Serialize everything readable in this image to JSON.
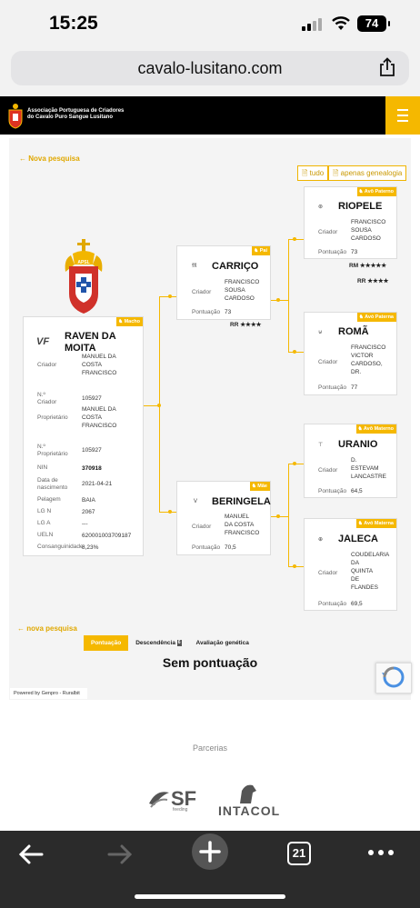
{
  "status_bar": {
    "time": "15:25",
    "battery": "74"
  },
  "browser": {
    "url": "cavalo-lusitano.com"
  },
  "site_header": {
    "org_line1": "Associação Portuguesa de Criadores",
    "org_line2": "do Cavalo Puro Sangue Lusitano"
  },
  "top_link": "← Nova pesquisa",
  "buttons": {
    "all": "tudo",
    "genealogy": "apenas genealogia"
  },
  "crest_text": "APSL",
  "horse": {
    "badge": "Macho",
    "mark": "VF",
    "name_line1": "RAVEN DA",
    "name_line2": "MOITA",
    "rows": [
      {
        "label": [
          "Criador"
        ],
        "value": [
          "MANUEL DA",
          "COSTA",
          "FRANCISCO"
        ]
      },
      {
        "label": [
          "N.º",
          "Criador"
        ],
        "value": [
          "105927"
        ]
      },
      {
        "label": [
          "Proprietário"
        ],
        "value": [
          "MANUEL DA",
          "COSTA",
          "FRANCISCO"
        ]
      },
      {
        "label": [
          "N.º",
          "Proprietário"
        ],
        "value": [
          "105927"
        ]
      },
      {
        "label": [
          "NIN"
        ],
        "value": [
          "370918"
        ]
      },
      {
        "label": [
          "Data de",
          "nascimento"
        ],
        "value": [
          "2021-04-21"
        ]
      },
      {
        "label": [
          "Pelagem"
        ],
        "value": [
          "BAIA"
        ]
      },
      {
        "label": [
          "LG N"
        ],
        "value": [
          "2067"
        ]
      },
      {
        "label": [
          "LG A"
        ],
        "value": [
          "---"
        ]
      },
      {
        "label": [
          "UELN"
        ],
        "value": [
          "620001003709187"
        ]
      },
      {
        "label": [
          "Consanguinidade"
        ],
        "value": [
          "8,23%"
        ]
      }
    ]
  },
  "father": {
    "badge": "Pai",
    "mark": "𝔐",
    "name": "CARRIÇO",
    "breeder_label": "Criador",
    "breeder": [
      "FRANCISCO",
      "SOUSA",
      "CARDOSO"
    ],
    "score_label": "Pontuação",
    "score": "73",
    "rating_code": "RR",
    "rating": "★★★★"
  },
  "mother": {
    "badge": "Mãe",
    "mark": "V",
    "name": "BERINGELA",
    "breeder_label": "Criador",
    "breeder": [
      "MANUEL",
      "DA COSTA",
      "FRANCISCO"
    ],
    "score_label": "Pontuação",
    "score": "70,5"
  },
  "grandparents": [
    {
      "badge": "Avô Paterno",
      "mark": "⊛",
      "name": "RIOPELE",
      "breeder_label": "Criador",
      "breeder": [
        "FRANCISCO",
        "SOUSA",
        "CARDOSO"
      ],
      "score_label": "Pontuação",
      "score": "73",
      "ratings": [
        {
          "code": "RM",
          "stars": "★★★★★"
        },
        {
          "code": "RR",
          "stars": "★★★★"
        }
      ]
    },
    {
      "badge": "Avó Paterna",
      "mark": "⊍",
      "name": "ROMÃ",
      "breeder_label": "Criador",
      "breeder": [
        "FRANCISCO",
        "VICTOR",
        "CARDOSO,",
        "DR."
      ],
      "score_label": "Pontuação",
      "score": "77"
    },
    {
      "badge": "Avô Materno",
      "mark": "⊤",
      "name": "URANIO",
      "breeder_label": "Criador",
      "breeder": [
        "D.",
        "ESTEVAM",
        "LANCASTRE"
      ],
      "score_label": "Pontuação",
      "score": "64,5"
    },
    {
      "badge": "Avó Materna",
      "mark": "⊕",
      "name": "JALECA",
      "breeder_label": "Criador",
      "breeder": [
        "COUDELARIA",
        "DA",
        "QUINTA",
        "DE",
        "FLANDES"
      ],
      "score_label": "Pontuação",
      "score": "69,5"
    }
  ],
  "bottom_link": "← nova pesquisa",
  "tabs": {
    "score": "Pontuação",
    "descendants": "Descendência",
    "descendants_count": "6",
    "genetic": "Avaliação genética"
  },
  "no_score": "Sem pontuação",
  "powered_by": "Powered by Genpro - Ruralbit",
  "partners_title": "Parcerias",
  "partners": {
    "sf": "SF",
    "sf_sub": "feeding",
    "intacol": "INTACOL"
  },
  "bottom_bar": {
    "tabs_count": "21"
  },
  "colors": {
    "accent": "#f5b800",
    "header_bg": "#000000",
    "toolbar_bg": "#2b2b2b"
  }
}
